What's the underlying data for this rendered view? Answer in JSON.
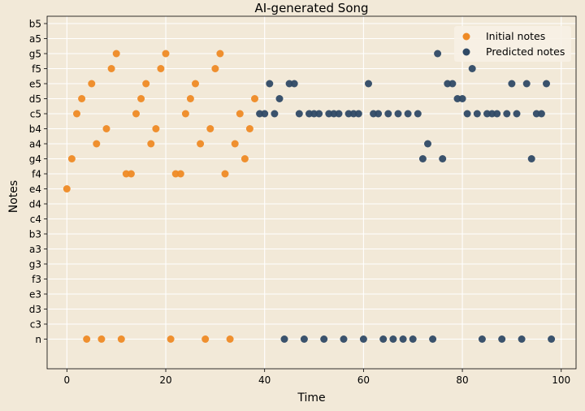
{
  "chart_data": {
    "type": "scatter",
    "title": "AI-generated Song",
    "xlabel": "Time",
    "ylabel": "Notes",
    "xlim": [
      -4,
      103
    ],
    "x_ticks": [
      0,
      20,
      40,
      60,
      80,
      100
    ],
    "categories": [
      "n",
      "c3",
      "d3",
      "e3",
      "f3",
      "g3",
      "a3",
      "b3",
      "c4",
      "d4",
      "e4",
      "f4",
      "g4",
      "a4",
      "b4",
      "c5",
      "d5",
      "e5",
      "f5",
      "g5",
      "a5",
      "b5"
    ],
    "grid": true,
    "legend_position": "top-right",
    "series": [
      {
        "name": "Initial notes",
        "color": "#ee8a25",
        "points": [
          [
            0,
            "e4"
          ],
          [
            1,
            "g4"
          ],
          [
            2,
            "c5"
          ],
          [
            3,
            "d5"
          ],
          [
            4,
            "n"
          ],
          [
            5,
            "e5"
          ],
          [
            6,
            "a4"
          ],
          [
            7,
            "n"
          ],
          [
            8,
            "b4"
          ],
          [
            9,
            "f5"
          ],
          [
            10,
            "g5"
          ],
          [
            11,
            "n"
          ],
          [
            12,
            "f4"
          ],
          [
            13,
            "f4"
          ],
          [
            14,
            "c5"
          ],
          [
            15,
            "d5"
          ],
          [
            16,
            "e5"
          ],
          [
            17,
            "a4"
          ],
          [
            18,
            "b4"
          ],
          [
            19,
            "f5"
          ],
          [
            20,
            "g5"
          ],
          [
            21,
            "n"
          ],
          [
            22,
            "f4"
          ],
          [
            23,
            "f4"
          ],
          [
            24,
            "c5"
          ],
          [
            25,
            "d5"
          ],
          [
            26,
            "e5"
          ],
          [
            27,
            "a4"
          ],
          [
            28,
            "n"
          ],
          [
            29,
            "b4"
          ],
          [
            30,
            "f5"
          ],
          [
            31,
            "g5"
          ],
          [
            32,
            "f4"
          ],
          [
            33,
            "n"
          ],
          [
            34,
            "a4"
          ],
          [
            35,
            "c5"
          ],
          [
            36,
            "g4"
          ],
          [
            37,
            "b4"
          ],
          [
            38,
            "d5"
          ]
        ]
      },
      {
        "name": "Predicted notes",
        "color": "#2f4a66",
        "points": [
          [
            39,
            "c5"
          ],
          [
            40,
            "c5"
          ],
          [
            41,
            "e5"
          ],
          [
            42,
            "c5"
          ],
          [
            43,
            "d5"
          ],
          [
            44,
            "n"
          ],
          [
            45,
            "e5"
          ],
          [
            46,
            "e5"
          ],
          [
            47,
            "c5"
          ],
          [
            48,
            "n"
          ],
          [
            49,
            "c5"
          ],
          [
            50,
            "c5"
          ],
          [
            51,
            "c5"
          ],
          [
            52,
            "n"
          ],
          [
            53,
            "c5"
          ],
          [
            54,
            "c5"
          ],
          [
            55,
            "c5"
          ],
          [
            56,
            "n"
          ],
          [
            57,
            "c5"
          ],
          [
            58,
            "c5"
          ],
          [
            59,
            "c5"
          ],
          [
            60,
            "n"
          ],
          [
            61,
            "e5"
          ],
          [
            62,
            "c5"
          ],
          [
            63,
            "c5"
          ],
          [
            64,
            "n"
          ],
          [
            65,
            "c5"
          ],
          [
            66,
            "n"
          ],
          [
            67,
            "c5"
          ],
          [
            68,
            "n"
          ],
          [
            69,
            "c5"
          ],
          [
            70,
            "n"
          ],
          [
            71,
            "c5"
          ],
          [
            72,
            "g4"
          ],
          [
            73,
            "a4"
          ],
          [
            74,
            "n"
          ],
          [
            75,
            "g5"
          ],
          [
            76,
            "g4"
          ],
          [
            77,
            "e5"
          ],
          [
            78,
            "e5"
          ],
          [
            79,
            "d5"
          ],
          [
            80,
            "d5"
          ],
          [
            81,
            "c5"
          ],
          [
            82,
            "f5"
          ],
          [
            83,
            "c5"
          ],
          [
            84,
            "n"
          ],
          [
            85,
            "c5"
          ],
          [
            86,
            "c5"
          ],
          [
            87,
            "c5"
          ],
          [
            88,
            "n"
          ],
          [
            89,
            "c5"
          ],
          [
            90,
            "e5"
          ],
          [
            91,
            "c5"
          ],
          [
            92,
            "n"
          ],
          [
            93,
            "e5"
          ],
          [
            94,
            "g4"
          ],
          [
            95,
            "c5"
          ],
          [
            96,
            "c5"
          ],
          [
            97,
            "e5"
          ],
          [
            98,
            "n"
          ]
        ]
      }
    ]
  }
}
